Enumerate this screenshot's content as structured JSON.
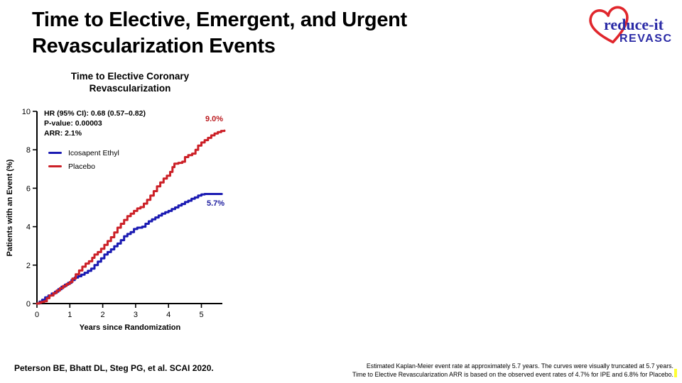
{
  "slide": {
    "title_lines": [
      "Time to Elective, Emergent, and Urgent",
      "Revascularization Events"
    ]
  },
  "logo": {
    "primary_text": "reduce-it",
    "secondary_text": "REVASC",
    "heart_color": "#e0262c",
    "text_color": "#2b2ba6"
  },
  "chart": {
    "subtitle_lines": [
      "Time to Elective Coronary",
      "Revascularization"
    ],
    "stats_lines": [
      "HR (95% CI): 0.68 (0.57–0.82)",
      "P-value: 0.00003",
      "ARR: 2.1%"
    ],
    "xlabel": "Years since Randomization",
    "ylabel": "Patients with an Event (%)"
  },
  "chart_data": {
    "type": "line",
    "subtype": "kaplan-meier-step",
    "title": "Time to Elective Coronary Revascularization",
    "xlabel": "Years since Randomization",
    "ylabel": "Patients with an Event (%)",
    "xlim": [
      0,
      5.7
    ],
    "ylim": [
      0,
      10
    ],
    "xticks": [
      0,
      1,
      2,
      3,
      4,
      5
    ],
    "yticks": [
      0,
      2,
      4,
      6,
      8,
      10
    ],
    "grid": false,
    "legend_position": "upper-left-inside",
    "annotations": {
      "hr": "HR (95% CI): 0.68 (0.57–0.82)",
      "p_value": "P-value: 0.00003",
      "arr": "ARR: 2.1%"
    },
    "axis_color": "#000000",
    "series": [
      {
        "name": "Icosapent Ethyl",
        "color": "#1a1ab2",
        "end_label": "5.7%",
        "end_label_color": "#1a1a9e",
        "points": [
          [
            0,
            0
          ],
          [
            0.08,
            0.1
          ],
          [
            0.16,
            0.2
          ],
          [
            0.25,
            0.32
          ],
          [
            0.35,
            0.42
          ],
          [
            0.45,
            0.52
          ],
          [
            0.55,
            0.62
          ],
          [
            0.65,
            0.75
          ],
          [
            0.75,
            0.88
          ],
          [
            0.85,
            0.98
          ],
          [
            0.95,
            1.08
          ],
          [
            1.05,
            1.22
          ],
          [
            1.15,
            1.35
          ],
          [
            1.25,
            1.42
          ],
          [
            1.35,
            1.5
          ],
          [
            1.45,
            1.6
          ],
          [
            1.55,
            1.7
          ],
          [
            1.65,
            1.82
          ],
          [
            1.75,
            2.0
          ],
          [
            1.85,
            2.18
          ],
          [
            1.95,
            2.35
          ],
          [
            2.05,
            2.55
          ],
          [
            2.15,
            2.68
          ],
          [
            2.25,
            2.82
          ],
          [
            2.35,
            2.98
          ],
          [
            2.45,
            3.12
          ],
          [
            2.55,
            3.3
          ],
          [
            2.65,
            3.5
          ],
          [
            2.75,
            3.62
          ],
          [
            2.85,
            3.72
          ],
          [
            2.95,
            3.88
          ],
          [
            3.05,
            3.95
          ],
          [
            3.2,
            4.0
          ],
          [
            3.3,
            4.15
          ],
          [
            3.4,
            4.28
          ],
          [
            3.5,
            4.38
          ],
          [
            3.6,
            4.48
          ],
          [
            3.7,
            4.58
          ],
          [
            3.8,
            4.68
          ],
          [
            3.9,
            4.75
          ],
          [
            4.0,
            4.82
          ],
          [
            4.1,
            4.92
          ],
          [
            4.2,
            5.0
          ],
          [
            4.3,
            5.1
          ],
          [
            4.4,
            5.18
          ],
          [
            4.5,
            5.28
          ],
          [
            4.6,
            5.35
          ],
          [
            4.7,
            5.45
          ],
          [
            4.8,
            5.52
          ],
          [
            4.9,
            5.62
          ],
          [
            5.0,
            5.68
          ],
          [
            5.1,
            5.7
          ],
          [
            5.62,
            5.7
          ]
        ]
      },
      {
        "name": "Placebo",
        "color": "#cc2027",
        "end_label": "9.0%",
        "end_label_color": "#bb1a1f",
        "points": [
          [
            0,
            0
          ],
          [
            0.07,
            0.04
          ],
          [
            0.13,
            0.08
          ],
          [
            0.22,
            0.12
          ],
          [
            0.3,
            0.28
          ],
          [
            0.38,
            0.42
          ],
          [
            0.5,
            0.55
          ],
          [
            0.6,
            0.68
          ],
          [
            0.7,
            0.8
          ],
          [
            0.8,
            0.92
          ],
          [
            0.9,
            1.02
          ],
          [
            1.0,
            1.12
          ],
          [
            1.08,
            1.3
          ],
          [
            1.18,
            1.52
          ],
          [
            1.28,
            1.72
          ],
          [
            1.38,
            1.92
          ],
          [
            1.48,
            2.08
          ],
          [
            1.58,
            2.2
          ],
          [
            1.68,
            2.38
          ],
          [
            1.75,
            2.55
          ],
          [
            1.85,
            2.68
          ],
          [
            1.95,
            2.85
          ],
          [
            2.05,
            3.05
          ],
          [
            2.15,
            3.25
          ],
          [
            2.25,
            3.45
          ],
          [
            2.35,
            3.7
          ],
          [
            2.45,
            3.95
          ],
          [
            2.55,
            4.15
          ],
          [
            2.65,
            4.35
          ],
          [
            2.75,
            4.55
          ],
          [
            2.85,
            4.68
          ],
          [
            2.95,
            4.82
          ],
          [
            3.05,
            4.95
          ],
          [
            3.15,
            5.02
          ],
          [
            3.25,
            5.2
          ],
          [
            3.35,
            5.4
          ],
          [
            3.45,
            5.62
          ],
          [
            3.55,
            5.85
          ],
          [
            3.65,
            6.1
          ],
          [
            3.75,
            6.3
          ],
          [
            3.85,
            6.5
          ],
          [
            3.95,
            6.65
          ],
          [
            4.05,
            6.85
          ],
          [
            4.12,
            7.1
          ],
          [
            4.18,
            7.28
          ],
          [
            4.3,
            7.32
          ],
          [
            4.42,
            7.38
          ],
          [
            4.5,
            7.62
          ],
          [
            4.6,
            7.72
          ],
          [
            4.72,
            7.8
          ],
          [
            4.82,
            8.0
          ],
          [
            4.9,
            8.22
          ],
          [
            5.0,
            8.38
          ],
          [
            5.1,
            8.5
          ],
          [
            5.2,
            8.62
          ],
          [
            5.3,
            8.75
          ],
          [
            5.4,
            8.85
          ],
          [
            5.5,
            8.92
          ],
          [
            5.6,
            8.98
          ],
          [
            5.7,
            9.0
          ]
        ]
      }
    ]
  },
  "footer": {
    "citation": "Peterson BE, Bhatt DL, Steg PG, et al. SCAI 2020.",
    "note_lines": [
      "Estimated Kaplan-Meier event rate at approximately 5.7 years. The curves were visually truncated at 5.7 years.",
      "Time to Elective Revascularization ARR is based on the observed event rates of 4.7% for IPE and 6.8% for Placebo."
    ]
  }
}
